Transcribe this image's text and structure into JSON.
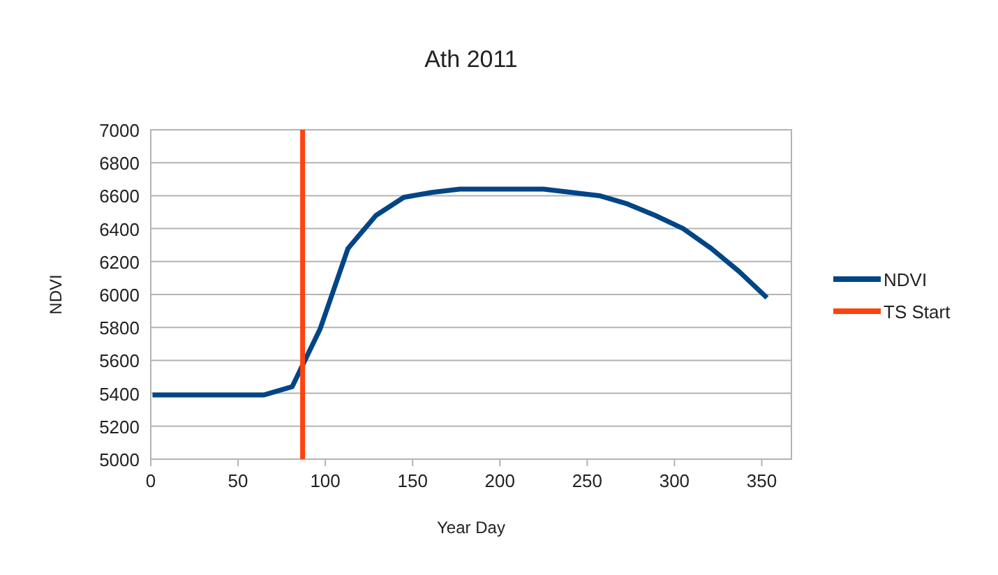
{
  "chart_data": {
    "type": "line",
    "title": "Ath 2011",
    "xlabel": "Year Day",
    "ylabel": "NDVI",
    "x": [
      1,
      17,
      33,
      49,
      65,
      81,
      97,
      113,
      129,
      145,
      161,
      177,
      193,
      209,
      225,
      241,
      257,
      273,
      289,
      305,
      321,
      337,
      353
    ],
    "series": [
      {
        "name": "NDVI",
        "color": "#004586",
        "values": [
          5390,
          5390,
          5390,
          5390,
          5390,
          5440,
          5790,
          6280,
          6480,
          6590,
          6620,
          6640,
          6640,
          6640,
          6640,
          6620,
          6600,
          6550,
          6480,
          6400,
          6280,
          6140,
          5980
        ]
      },
      {
        "name": "TS Start",
        "color": "#ff420e",
        "x": [
          87,
          87
        ],
        "values": [
          5000,
          7000
        ]
      }
    ],
    "xlim": [
      0,
      367
    ],
    "xticks": [
      0,
      50,
      100,
      150,
      200,
      250,
      300,
      350
    ],
    "ylim": [
      5000,
      7000
    ],
    "yticks": [
      5000,
      5200,
      5400,
      5600,
      5800,
      6000,
      6200,
      6400,
      6600,
      6800,
      7000
    ],
    "grid": "y",
    "legend": "right",
    "line_style": "solid",
    "marker": "none"
  }
}
